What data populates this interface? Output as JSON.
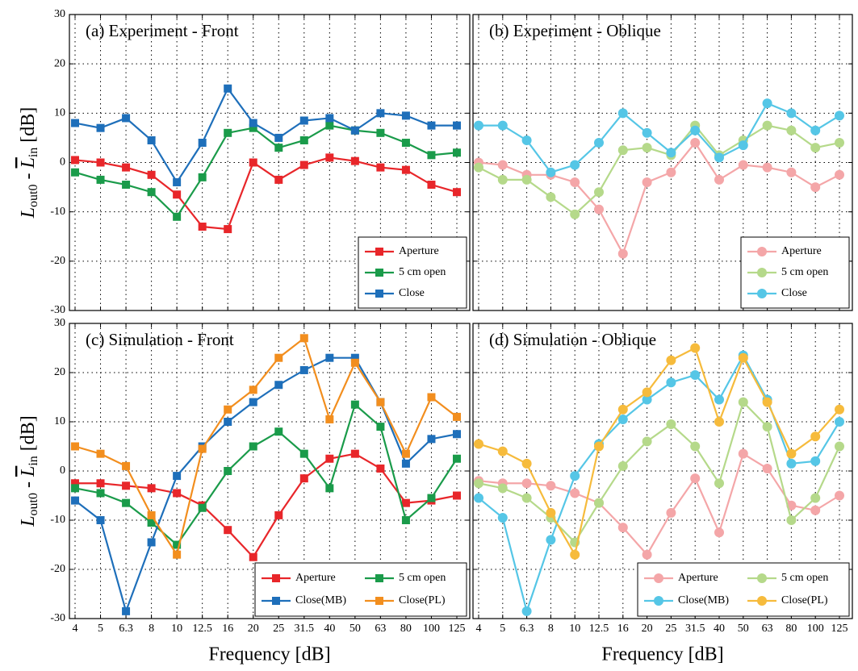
{
  "chart_data": [
    {
      "type": "line",
      "title": "(a) Experiment - Front",
      "marker": "square",
      "ylabel_parts": [
        "L",
        "out0",
        " - ",
        "L",
        "in",
        " [dB]"
      ],
      "categories": [
        "4",
        "5",
        "6.3",
        "8",
        "10",
        "12.5",
        "16",
        "20",
        "25",
        "31.5",
        "40",
        "50",
        "63",
        "80",
        "100",
        "125"
      ],
      "show_x_tick_labels": false,
      "show_y_tick_labels": true,
      "ylim": [
        -30,
        30
      ],
      "yticks": [
        -30,
        -20,
        -10,
        0,
        10,
        20,
        30
      ],
      "grid": true,
      "legend": "lower right",
      "legend_columns": 1,
      "series": [
        {
          "name": "Aperture",
          "color": "#e8262a",
          "values": [
            0.5,
            0,
            -1,
            -2.5,
            -6.5,
            -13,
            -13.5,
            0,
            -3.5,
            -0.5,
            1,
            0.3,
            -1,
            -1.5,
            -4.5,
            -6
          ]
        },
        {
          "name": "5 cm open",
          "color": "#1a9b4a",
          "values": [
            -2,
            -3.5,
            -4.5,
            -6,
            -11,
            -3,
            6,
            7,
            3,
            4.5,
            7.5,
            6.5,
            6,
            4,
            1.5,
            2
          ]
        },
        {
          "name": "Close",
          "color": "#1e6fba",
          "values": [
            8,
            7,
            9,
            4.5,
            -4,
            4,
            15,
            8,
            5,
            8.5,
            9,
            6.5,
            10,
            9.5,
            7.5,
            7.5
          ]
        }
      ]
    },
    {
      "type": "line",
      "title": "(b) Experiment - Oblique",
      "marker": "circle",
      "categories": [
        "4",
        "5",
        "6.3",
        "8",
        "10",
        "12.5",
        "16",
        "20",
        "25",
        "31.5",
        "40",
        "50",
        "63",
        "80",
        "100",
        "125"
      ],
      "show_x_tick_labels": false,
      "show_y_tick_labels": false,
      "ylim": [
        -30,
        30
      ],
      "yticks": [
        -30,
        -20,
        -10,
        0,
        10,
        20,
        30
      ],
      "grid": true,
      "legend": "lower right",
      "legend_columns": 1,
      "series": [
        {
          "name": "Aperture",
          "color": "#f4a6a8",
          "values": [
            0,
            -0.5,
            -2.5,
            -2.5,
            -4,
            -9.5,
            -18.5,
            -4,
            -2,
            4,
            -3.5,
            -0.5,
            -1,
            -2,
            -5,
            -2.5
          ]
        },
        {
          "name": "5 cm open",
          "color": "#b5d98a",
          "values": [
            -1,
            -3.5,
            -3.5,
            -7,
            -10.5,
            -6,
            2.5,
            3,
            1.5,
            7.5,
            1.5,
            4.5,
            7.5,
            6.5,
            3,
            4
          ]
        },
        {
          "name": "Close",
          "color": "#55c6e6",
          "values": [
            7.5,
            7.5,
            4.5,
            -2,
            -0.5,
            4,
            10,
            6,
            2,
            6.5,
            1,
            3.5,
            12,
            10,
            6.5,
            9.5
          ]
        }
      ]
    },
    {
      "type": "line",
      "title": "(c) Simulation - Front",
      "marker": "square",
      "ylabel_parts": [
        "L",
        "out0",
        " - ",
        "L",
        "in",
        " [dB]"
      ],
      "x_label": "Frequency [dB]",
      "categories": [
        "4",
        "5",
        "6.3",
        "8",
        "10",
        "12.5",
        "16",
        "20",
        "25",
        "31.5",
        "40",
        "50",
        "63",
        "80",
        "100",
        "125"
      ],
      "show_x_tick_labels": true,
      "show_y_tick_labels": true,
      "ylim": [
        -30,
        30
      ],
      "yticks": [
        -30,
        -20,
        -10,
        0,
        10,
        20,
        30
      ],
      "grid": true,
      "legend": "lower right",
      "legend_columns": 2,
      "series": [
        {
          "name": "Aperture",
          "color": "#e8262a",
          "values": [
            -2.5,
            -2.5,
            -3,
            -3.5,
            -4.5,
            -7,
            -12,
            -17.5,
            -9,
            -1.5,
            2.5,
            3.5,
            0.5,
            -6.5,
            -6,
            -5
          ]
        },
        {
          "name": "5 cm open",
          "color": "#1a9b4a",
          "values": [
            -3.5,
            -4.5,
            -6.5,
            -10.5,
            -15,
            -7.5,
            0,
            5,
            8,
            3.5,
            -3.5,
            13.5,
            9,
            -10,
            -5.5,
            2.5
          ]
        },
        {
          "name": "Close(MB)",
          "color": "#1e6fba",
          "values": [
            -6,
            -10,
            -28.5,
            -14.5,
            -1,
            5,
            10,
            14,
            17.5,
            20.5,
            23,
            23,
            14,
            1.5,
            6.5,
            7.5
          ]
        },
        {
          "name": "Close(PL)",
          "color": "#f28e1e",
          "values": [
            5,
            3.5,
            1,
            -9,
            -17,
            4.5,
            12.5,
            16.5,
            23,
            27,
            10.5,
            22,
            14,
            3.5,
            15,
            11
          ]
        }
      ]
    },
    {
      "type": "line",
      "title": "(d) Simulation - Oblique",
      "marker": "circle",
      "x_label": "Frequency [dB]",
      "categories": [
        "4",
        "5",
        "6.3",
        "8",
        "10",
        "12.5",
        "16",
        "20",
        "25",
        "31.5",
        "40",
        "50",
        "63",
        "80",
        "100",
        "125"
      ],
      "show_x_tick_labels": true,
      "show_y_tick_labels": false,
      "ylim": [
        -30,
        30
      ],
      "yticks": [
        -30,
        -20,
        -10,
        0,
        10,
        20,
        30
      ],
      "grid": true,
      "legend": "lower right",
      "legend_columns": 2,
      "series": [
        {
          "name": "Aperture",
          "color": "#f4a6a8",
          "values": [
            -2,
            -2.5,
            -2.5,
            -3,
            -4.5,
            -6.5,
            -11.5,
            -17,
            -8.5,
            -1.5,
            -12.5,
            3.5,
            0.5,
            -7,
            -8,
            -5
          ]
        },
        {
          "name": "5 cm open",
          "color": "#b5d98a",
          "values": [
            -2.5,
            -3.5,
            -5.5,
            -9.5,
            -14.5,
            -6.5,
            1,
            6,
            9.5,
            5,
            -2.5,
            14,
            9,
            -10,
            -5.5,
            5
          ]
        },
        {
          "name": "Close(MB)",
          "color": "#55c6e6",
          "values": [
            -5.5,
            -9.5,
            -28.5,
            -14,
            -1,
            5.5,
            10.5,
            14.5,
            18,
            19.5,
            14.5,
            23.5,
            14.5,
            1.5,
            2,
            10
          ]
        },
        {
          "name": "Close(PL)",
          "color": "#f6bb3c",
          "values": [
            5.5,
            4,
            1.5,
            -8.5,
            -17,
            5,
            12.5,
            16,
            22.5,
            25,
            10,
            23,
            14,
            3.5,
            7,
            12.5
          ]
        }
      ]
    }
  ]
}
